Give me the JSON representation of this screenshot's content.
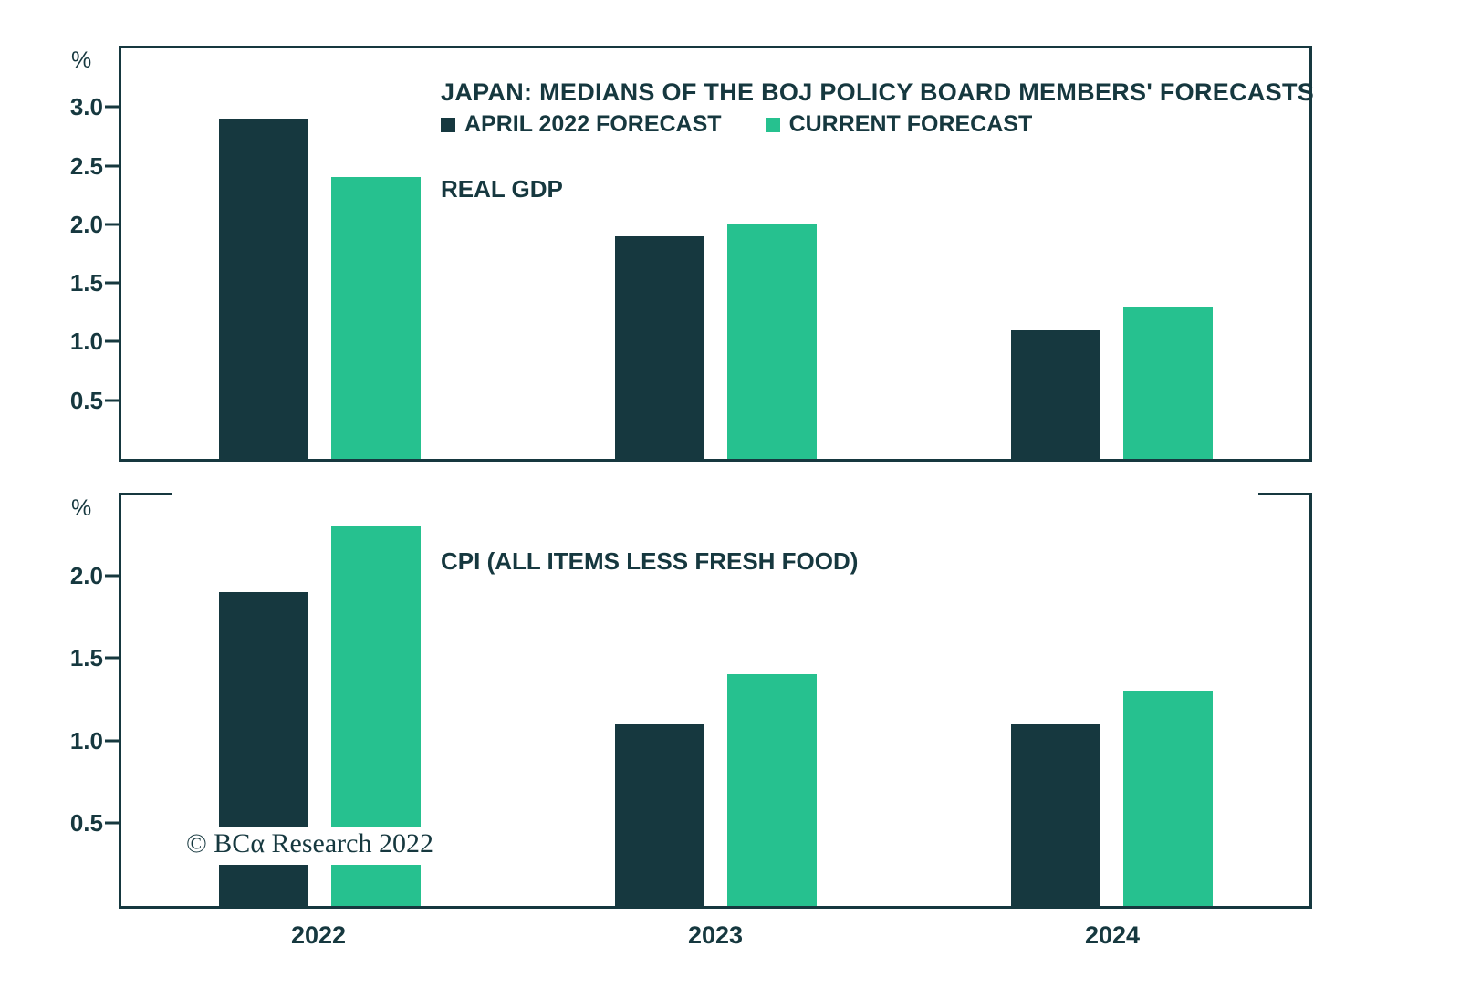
{
  "title": "JAPAN: MEDIANS OF THE BOJ POLICY BOARD MEMBERS' FORECASTS",
  "legend": [
    {
      "label": "APRIL 2022 FORECAST",
      "color": "#16383f"
    },
    {
      "label": "CURRENT FORECAST",
      "color": "#26c18f"
    }
  ],
  "colors": {
    "dark": "#16383f",
    "green": "#26c18f"
  },
  "copyright": "© BCα Research 2022",
  "x_axis_labels": [
    "2022",
    "2023",
    "2024"
  ],
  "chart_data": [
    {
      "type": "bar",
      "title": "REAL GDP",
      "unit": "%",
      "categories": [
        "2022",
        "2023",
        "2024"
      ],
      "series": [
        {
          "name": "APRIL 2022 FORECAST",
          "values": [
            2.9,
            1.9,
            1.1
          ]
        },
        {
          "name": "CURRENT FORECAST",
          "values": [
            2.4,
            2.0,
            1.3
          ]
        }
      ],
      "ylim": [
        0,
        3.5
      ],
      "yticks": [
        0.5,
        1.0,
        1.5,
        2.0,
        2.5,
        3.0
      ],
      "grid": false,
      "legend_position": "top"
    },
    {
      "type": "bar",
      "title": "CPI (ALL ITEMS LESS FRESH FOOD)",
      "unit": "%",
      "categories": [
        "2022",
        "2023",
        "2024"
      ],
      "series": [
        {
          "name": "APRIL 2022 FORECAST",
          "values": [
            1.9,
            1.1,
            1.1
          ]
        },
        {
          "name": "CURRENT FORECAST",
          "values": [
            2.3,
            1.4,
            1.3
          ]
        }
      ],
      "ylim": [
        0,
        2.5
      ],
      "yticks": [
        0.5,
        1.0,
        1.5,
        2.0
      ],
      "grid": false,
      "legend_position": "top"
    }
  ]
}
